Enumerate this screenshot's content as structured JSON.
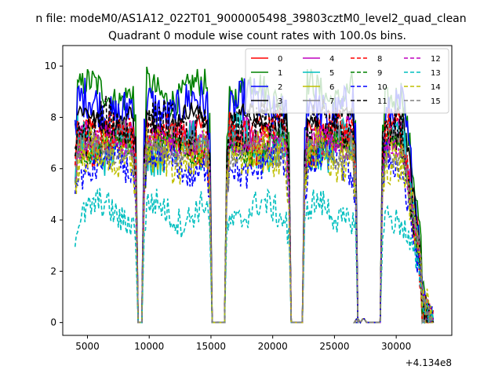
{
  "chart_data": {
    "type": "line",
    "suptitle": "n file: modeM0/AS1A12_022T01_9000005498_39803cztM0_level2_quad_clean",
    "title": "Quadrant 0 module wise count rates with 100.0s bins.",
    "xlabel": "",
    "ylabel": "",
    "x_offset_label": "+4.134e8",
    "xlim": [
      3000,
      34500
    ],
    "ylim": [
      -0.5,
      10.8
    ],
    "xticks": [
      5000,
      10000,
      15000,
      20000,
      25000,
      30000
    ],
    "yticks": [
      0,
      2,
      4,
      6,
      8,
      10
    ],
    "grid": false,
    "legend_position": "top-right",
    "legend_columns": 4,
    "x_segments": [
      [
        4000,
        8900
      ],
      [
        9600,
        14900
      ],
      [
        16300,
        21300
      ],
      [
        22600,
        26700
      ],
      [
        26800,
        26900
      ],
      [
        27300,
        27400
      ],
      [
        28900,
        33000
      ]
    ],
    "gap_value": 0,
    "series": [
      {
        "name": "0",
        "color": "#ff0000",
        "dash": "solid",
        "level": 7.4
      },
      {
        "name": "1",
        "color": "#008000",
        "dash": "solid",
        "level": 9.0
      },
      {
        "name": "2",
        "color": "#0000ff",
        "dash": "solid",
        "level": 8.4
      },
      {
        "name": "3",
        "color": "#000000",
        "dash": "solid",
        "level": 7.9
      },
      {
        "name": "4",
        "color": "#bf00bf",
        "dash": "solid",
        "level": 7.1
      },
      {
        "name": "5",
        "color": "#00bfbf",
        "dash": "solid",
        "level": 6.9
      },
      {
        "name": "6",
        "color": "#bfbf00",
        "dash": "solid",
        "level": 6.6
      },
      {
        "name": "7",
        "color": "#808080",
        "dash": "solid",
        "level": 7.0
      },
      {
        "name": "8",
        "color": "#ff0000",
        "dash": "dashed",
        "level": 7.2
      },
      {
        "name": "9",
        "color": "#008000",
        "dash": "dashed",
        "level": 6.8
      },
      {
        "name": "10",
        "color": "#0000ff",
        "dash": "dashed",
        "level": 6.1
      },
      {
        "name": "11",
        "color": "#000000",
        "dash": "dashed",
        "level": 7.6
      },
      {
        "name": "12",
        "color": "#bf00bf",
        "dash": "dashed",
        "level": 7.0
      },
      {
        "name": "13",
        "color": "#00bfbf",
        "dash": "dashed",
        "level": 4.3
      },
      {
        "name": "14",
        "color": "#bfbf00",
        "dash": "dashed",
        "level": 6.5
      },
      {
        "name": "15",
        "color": "#808080",
        "dash": "dashed",
        "level": 6.7
      }
    ]
  }
}
